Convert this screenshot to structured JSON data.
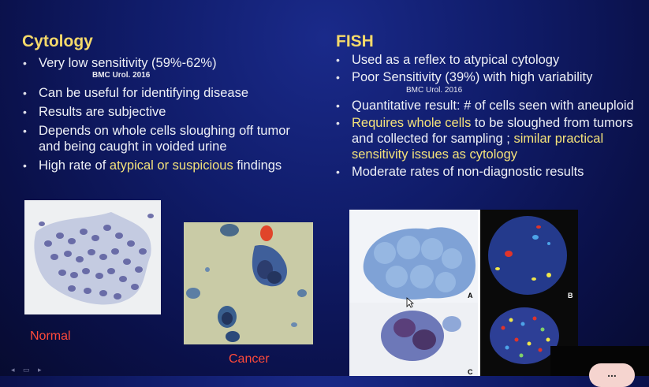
{
  "left": {
    "title": "Cytology",
    "ref": "BMC Urol. 2016",
    "bullets": [
      "Very low sensitivity (59%-62%)",
      "Can be useful for identifying disease",
      "Results are subjective",
      "Depends on whole cells sloughing off tumor and being caught in voided urine",
      "High rate of atypical or suspicious findings"
    ],
    "b5_pre": "High rate of ",
    "b5_hl": "atypical or suspicious",
    "b5_post": " findings",
    "caption_normal": "Normal",
    "caption_cancer": "Cancer"
  },
  "right": {
    "title": "FISH",
    "ref": "BMC Urol. 2016",
    "bullets": [
      "Used as a reflex to atypical cytology",
      "Poor Sensitivity (39%) with high variability",
      "Quantitative result: # of cells seen with aneuploid",
      "Requires whole cells to be sloughed from tumors and collected for sampling ; similar practical sensitivity issues as cytology",
      "Moderate rates of non-diagnostic results"
    ],
    "b4_hl1": "Requires whole cells",
    "b4_mid": " to be sloughed from tumors and collected for sampling ; ",
    "b4_hl2": "similar practical sensitivity issues as cytology",
    "panel_labels": [
      "A",
      "B",
      "C"
    ]
  },
  "overlay": {
    "pill_text": "..."
  },
  "colors": {
    "accent": "#f4d96a",
    "highlight": "#f4e27a",
    "caption": "#ff4a3a",
    "background": "#101c6a"
  }
}
